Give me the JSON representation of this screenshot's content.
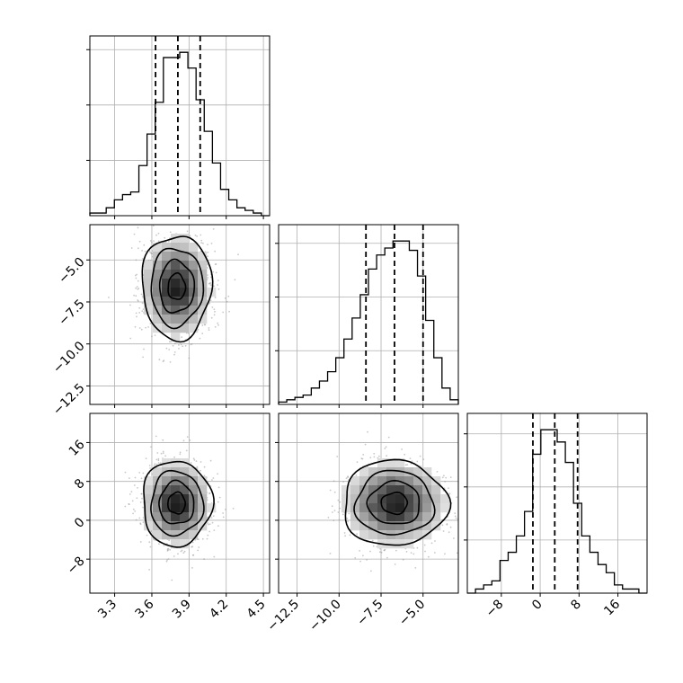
{
  "chart_data": {
    "type": "corner",
    "variables": [
      {
        "id": "p0",
        "range": [
          3.1,
          4.55
        ],
        "ticks": [
          3.3,
          3.6,
          3.9,
          4.2,
          4.5
        ],
        "tick_labels": [
          "3.3",
          "3.6",
          "3.9",
          "4.2",
          "4.5"
        ],
        "quantiles": [
          3.63,
          3.81,
          3.99
        ],
        "hist_counts": [
          1,
          1,
          3,
          6,
          8,
          9,
          19,
          31,
          43,
          60,
          60,
          62,
          56,
          44,
          32,
          20,
          10,
          6,
          3,
          2,
          1,
          0
        ]
      },
      {
        "id": "p1",
        "range": [
          -13.6,
          -2.9
        ],
        "ticks": [
          -12.5,
          -10.0,
          -7.5,
          -5.0
        ],
        "tick_labels": [
          "−12.5",
          "−10.0",
          "−7.5",
          "−5.0"
        ],
        "quantiles": [
          -8.4,
          -6.7,
          -5.0
        ],
        "hist_counts": [
          1,
          2,
          3,
          4,
          7,
          10,
          14,
          20,
          28,
          37,
          47,
          58,
          64,
          67,
          70,
          70,
          66,
          55,
          36,
          20,
          7,
          2
        ]
      },
      {
        "id": "p2",
        "range": [
          -15,
          22
        ],
        "ticks": [
          -8,
          0,
          8,
          16
        ],
        "tick_labels": [
          "−8",
          "0",
          "8",
          "16"
        ],
        "quantiles": [
          -1.5,
          3.0,
          7.7
        ],
        "hist_counts": [
          0,
          1,
          2,
          3,
          8,
          10,
          14,
          20,
          34,
          40,
          40,
          37,
          32,
          22,
          14,
          10,
          7,
          5,
          2,
          1,
          1,
          0
        ]
      }
    ],
    "pairs": [
      {
        "x": "p0",
        "y": "p1",
        "center": [
          3.8,
          -6.6
        ],
        "sigma": [
          0.14,
          1.55
        ]
      },
      {
        "x": "p0",
        "y": "p2",
        "center": [
          3.8,
          3.5
        ],
        "sigma": [
          0.14,
          4.4
        ]
      },
      {
        "x": "p1",
        "y": "p2",
        "center": [
          -6.7,
          3.5
        ],
        "sigma": [
          1.55,
          4.4
        ]
      }
    ],
    "histogram_style": "step",
    "quantile_linestyle": "dashed",
    "grid": true
  }
}
